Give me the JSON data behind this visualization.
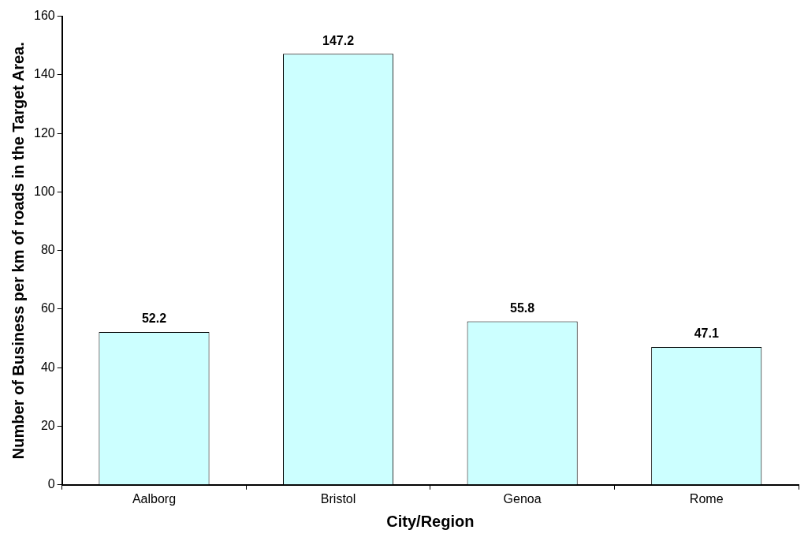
{
  "chart_data": {
    "type": "bar",
    "xlabel": "City/Region",
    "ylabel": "Number of Business per km of roads in the Target Area.",
    "categories": [
      "Aalborg",
      "Bristol",
      "Genoa",
      "Rome"
    ],
    "values": [
      52.2,
      147.2,
      55.8,
      47.1
    ],
    "color": "#ccffff",
    "ylim": [
      0,
      160
    ],
    "yticks": [
      0,
      20,
      40,
      60,
      80,
      100,
      120,
      140,
      160
    ],
    "grid": false,
    "legend": false,
    "data_labels": true
  }
}
